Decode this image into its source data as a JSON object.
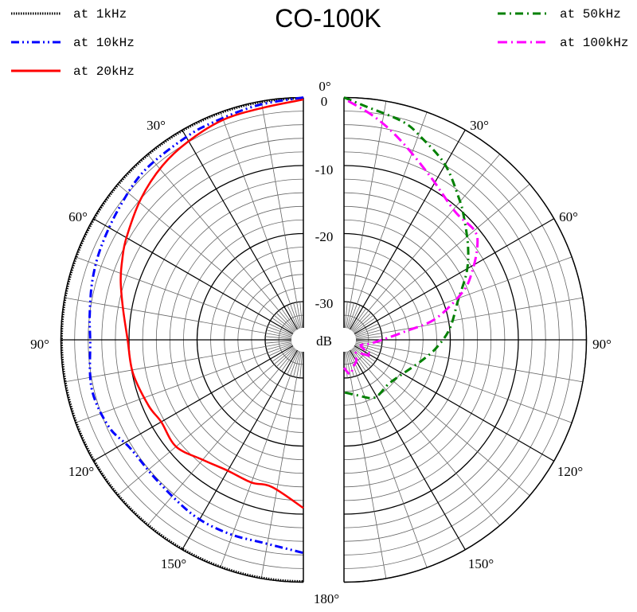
{
  "chart_data": {
    "type": "polar",
    "title": "CO-100K",
    "radial_unit_label": "dB",
    "rlim": [
      -35,
      0
    ],
    "radial_tick_labels": [
      "0",
      "-10",
      "-20",
      "-30"
    ],
    "angle_tick_labels": {
      "top": "0°",
      "bottom": "180°",
      "left": [
        "30°",
        "60°",
        "90°",
        "120°",
        "150°"
      ],
      "right": [
        "30°",
        "60°",
        "90°",
        "120°",
        "150°"
      ]
    },
    "grid": true,
    "legend": [
      {
        "label": "at 1kHz",
        "color": "#000000",
        "style": "dotted",
        "side": "left"
      },
      {
        "label": "at 10kHz",
        "color": "#0000ff",
        "style": "dash-dot-dot",
        "side": "left"
      },
      {
        "label": "at 20kHz",
        "color": "#ff0000",
        "style": "solid",
        "side": "left"
      },
      {
        "label": "at 50kHz",
        "color": "#008000",
        "style": "dash-dot",
        "side": "right"
      },
      {
        "label": "at 100kHz",
        "color": "#ff00ff",
        "style": "dash-dot",
        "side": "right"
      }
    ],
    "series": [
      {
        "name": "at 1kHz",
        "half": "left",
        "angle": [
          0,
          30,
          60,
          90,
          120,
          150,
          180
        ],
        "db": [
          0,
          0,
          0,
          0,
          0,
          0,
          0
        ]
      },
      {
        "name": "at 10kHz",
        "half": "left",
        "angle": [
          0,
          11,
          22,
          30,
          43,
          54,
          65,
          74,
          83,
          90,
          103,
          114,
          122,
          134,
          148,
          159,
          169,
          180
        ],
        "db": [
          0,
          -0.5,
          -1,
          -1.2,
          -1.5,
          -2.3,
          -2.9,
          -3.4,
          -4,
          -4.3,
          -3.7,
          -4.3,
          -5.6,
          -5.8,
          -5.2,
          -5.1,
          -5.2,
          -4.3
        ]
      },
      {
        "name": "at 20kHz",
        "half": "left",
        "angle": [
          0,
          10,
          20,
          30,
          39,
          49,
          60,
          66,
          72,
          80,
          90,
          101,
          113,
          120,
          130,
          140,
          150,
          160,
          168,
          180
        ],
        "db": [
          -0.3,
          -1,
          -1.2,
          -1.9,
          -2.7,
          -4,
          -5.6,
          -6.5,
          -7.4,
          -8.7,
          -9.8,
          -10.1,
          -10.9,
          -11.5,
          -11.2,
          -12.6,
          -13.4,
          -13.3,
          -13.5,
          -10.9
        ]
      },
      {
        "name": "at 50kHz",
        "half": "right",
        "angle": [
          0,
          5,
          15,
          21,
          30,
          39,
          44,
          53,
          61,
          71,
          84,
          95,
          105,
          122,
          135,
          152,
          166,
          180
        ],
        "db": [
          0,
          -1.1,
          -2.4,
          -3.8,
          -5.9,
          -8.8,
          -10.3,
          -12.8,
          -15,
          -17.9,
          -20,
          -22,
          -23.8,
          -25.8,
          -26.4,
          -26,
          -27.2,
          -27.9
        ]
      },
      {
        "name": "at 100kHz",
        "half": "right",
        "angle": [
          1,
          8,
          16,
          28,
          41,
          50,
          55,
          62,
          68,
          77,
          82,
          90,
          100,
          110,
          120,
          130,
          140,
          150,
          160,
          170,
          180
        ],
        "db": [
          -0.5,
          -2.6,
          -5.2,
          -8.5,
          -10.7,
          -10.6,
          -11.7,
          -14.3,
          -16.8,
          -21.8,
          -26.4,
          -30,
          -32,
          -33,
          -31,
          -32.5,
          -33,
          -32,
          -31.5,
          -30.5,
          -31.5
        ]
      }
    ]
  }
}
